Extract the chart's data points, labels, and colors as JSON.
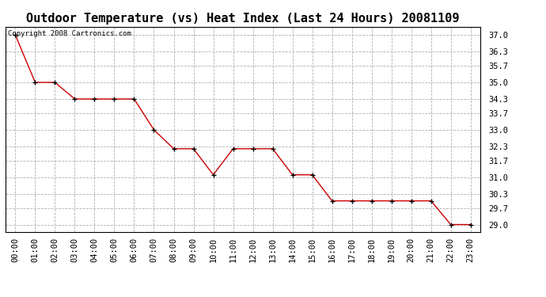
{
  "title": "Outdoor Temperature (vs) Heat Index (Last 24 Hours) 20081109",
  "copyright": "Copyright 2008 Cartronics.com",
  "x_labels": [
    "00:00",
    "01:00",
    "02:00",
    "03:00",
    "04:00",
    "05:00",
    "06:00",
    "07:00",
    "08:00",
    "09:00",
    "10:00",
    "11:00",
    "12:00",
    "13:00",
    "14:00",
    "15:00",
    "16:00",
    "17:00",
    "18:00",
    "19:00",
    "20:00",
    "21:00",
    "22:00",
    "23:00"
  ],
  "y_values": [
    37.0,
    35.0,
    35.0,
    34.3,
    34.3,
    34.3,
    34.3,
    33.0,
    32.2,
    32.2,
    31.1,
    32.2,
    32.2,
    32.2,
    31.1,
    31.1,
    30.0,
    30.0,
    30.0,
    30.0,
    30.0,
    30.0,
    29.0,
    29.0
  ],
  "line_color": "#cc0000",
  "marker": "+",
  "marker_color": "#000000",
  "bg_color": "#ffffff",
  "grid_color": "#b0b0b0",
  "ylim_min": 28.7,
  "ylim_max": 37.35,
  "yticks": [
    29.0,
    29.7,
    30.3,
    31.0,
    31.7,
    32.3,
    33.0,
    33.7,
    34.3,
    35.0,
    35.7,
    36.3,
    37.0
  ],
  "ytick_labels": [
    "29.0",
    "29.7",
    "30.3",
    "31.0",
    "31.7",
    "32.3",
    "33.0",
    "33.7",
    "34.3",
    "35.0",
    "35.7",
    "36.3",
    "37.0"
  ],
  "title_fontsize": 11,
  "tick_fontsize": 7.5,
  "copyright_fontsize": 6.5
}
